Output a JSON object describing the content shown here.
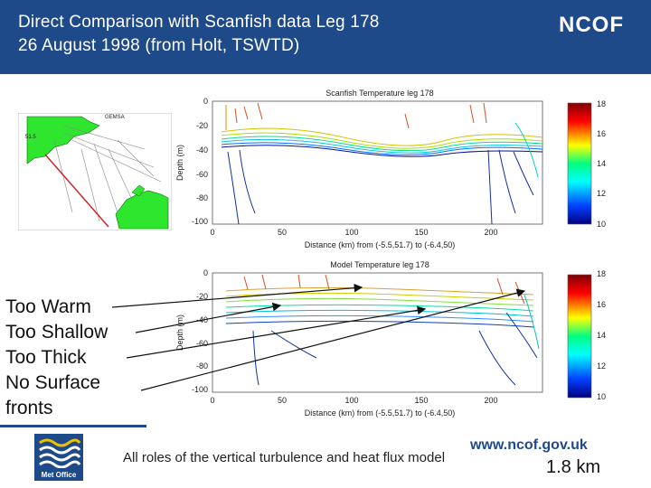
{
  "slide": {
    "title_line1": "Direct Comparison with Scanfish data Leg 178",
    "title_line2": "26 August 1998  (from Holt, TSWTD)",
    "logo_text": "NCOF"
  },
  "top_plot": {
    "title": "Scanfish Temperature leg 178",
    "ylabel": "Depth (m)",
    "xlabel": "Distance (km) from (-5.5,51.7) to (-6.4,50)",
    "y_ticks": [
      "0",
      "-20",
      "-40",
      "-60",
      "-80",
      "-100"
    ],
    "x_ticks": [
      "0",
      "50",
      "100",
      "150",
      "200"
    ]
  },
  "bottom_plot": {
    "title": "Model Temperature leg 178",
    "ylabel": "Depth (m)",
    "xlabel": "Distance (km) from (-5.5,51.7) to (-6.4,50)",
    "y_ticks": [
      "0",
      "-20",
      "-40",
      "-60",
      "-80",
      "-100"
    ],
    "x_ticks": [
      "0",
      "50",
      "100",
      "150",
      "200"
    ]
  },
  "colorbar": {
    "ticks": [
      "18",
      "16",
      "14",
      "12",
      "10"
    ]
  },
  "annotations": [
    "Too Warm",
    "Too Shallow",
    "Too Thick",
    "No Surface",
    "fronts"
  ],
  "footer": {
    "url": "www.ncof.gov.uk",
    "note": "All roles of the vertical turbulence and heat flux model",
    "scale_text": "1.8 km",
    "metoffice_text": "Met Office"
  }
}
